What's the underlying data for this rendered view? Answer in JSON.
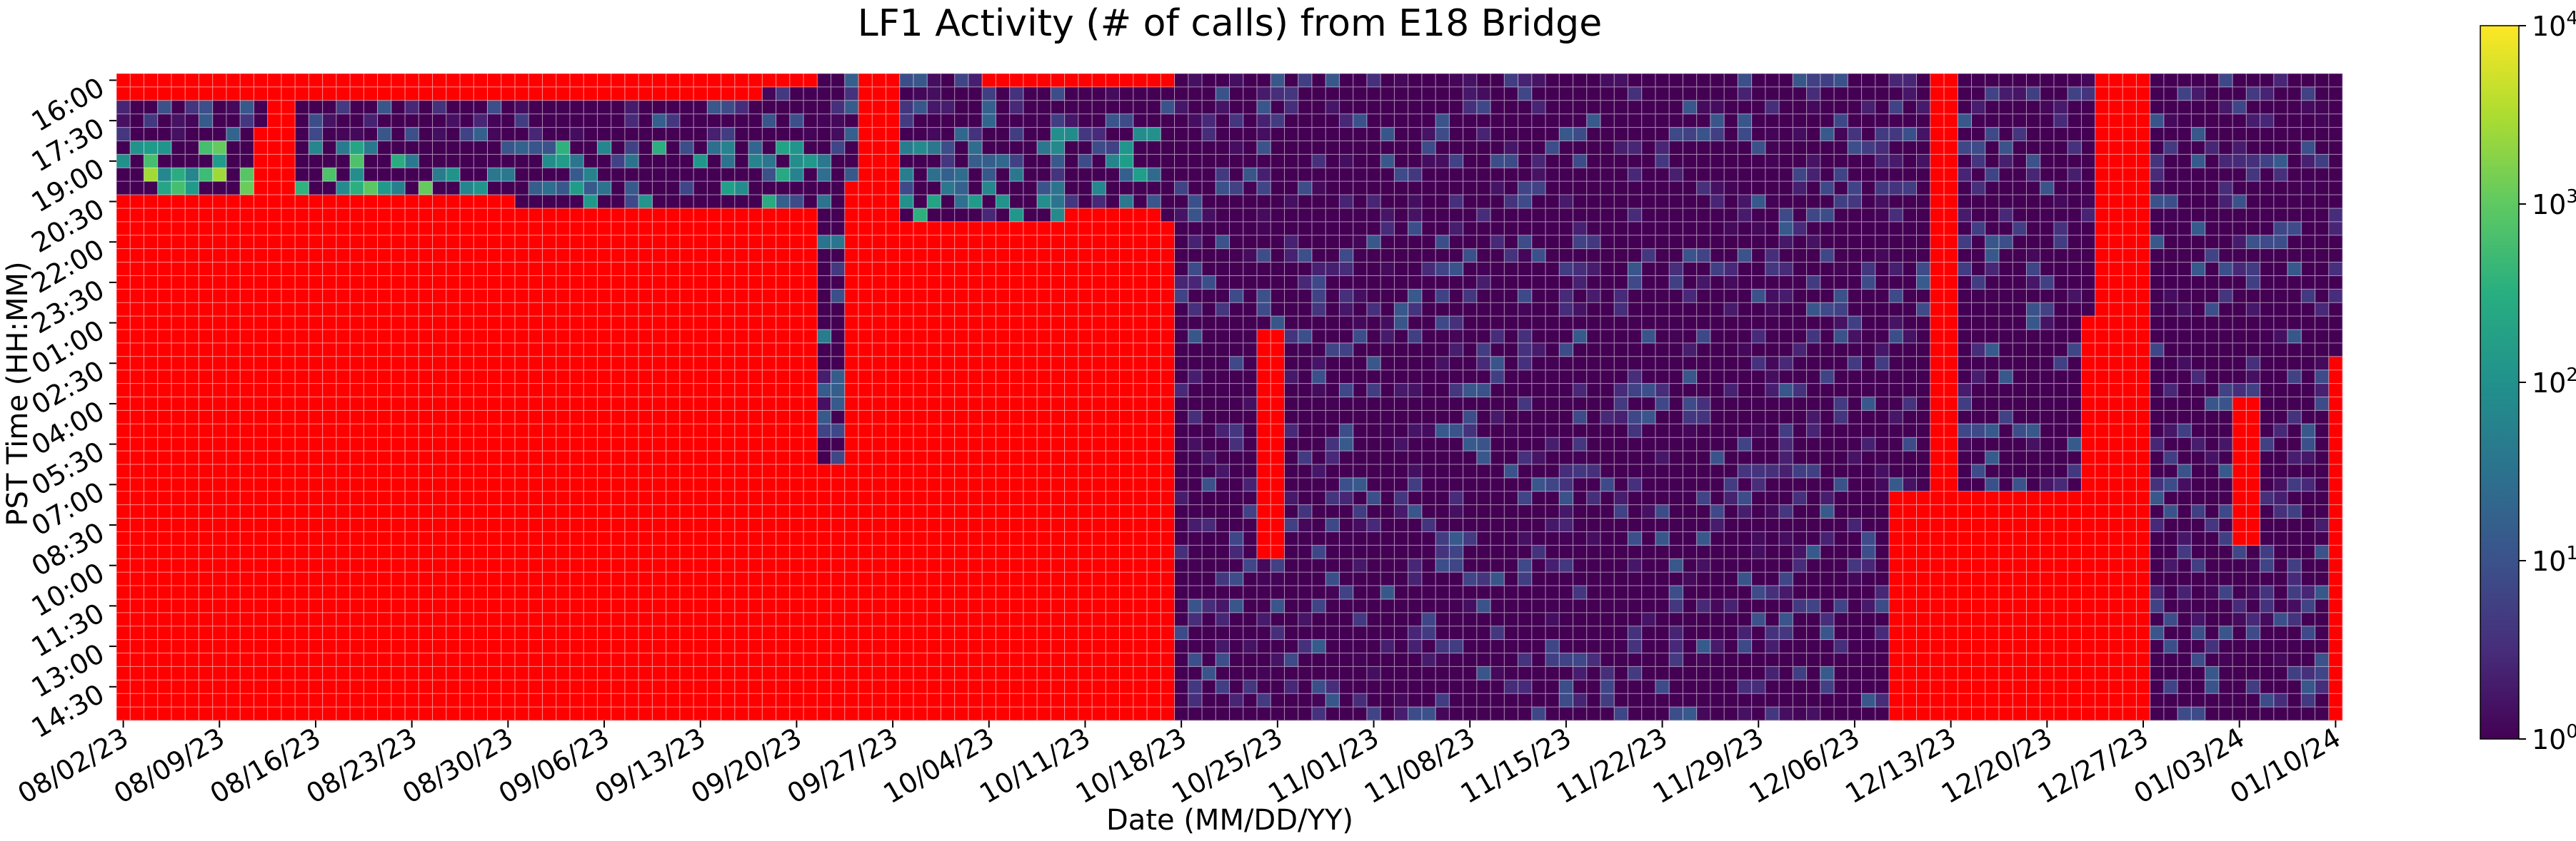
{
  "chart_data": {
    "type": "heatmap",
    "title": "LF1 Activity (# of calls) from E18 Bridge",
    "xlabel": "Date (MM/DD/YY)",
    "ylabel": "PST Time (HH:MM)",
    "x_start": "08/02/23",
    "x_end": "01/10/24",
    "x_tick_labels": [
      "08/02/23",
      "08/09/23",
      "08/16/23",
      "08/23/23",
      "08/30/23",
      "09/06/23",
      "09/13/23",
      "09/20/23",
      "09/27/23",
      "10/04/23",
      "10/11/23",
      "10/18/23",
      "10/25/23",
      "11/01/23",
      "11/08/23",
      "11/15/23",
      "11/22/23",
      "11/29/23",
      "12/06/23",
      "12/13/23",
      "12/20/23",
      "12/27/23",
      "01/03/24",
      "01/10/24"
    ],
    "y_start": "16:00",
    "y_step_minutes": 30,
    "y_tick_labels": [
      "16:00",
      "17:30",
      "19:00",
      "20:30",
      "22:00",
      "23:30",
      "01:00",
      "02:30",
      "04:00",
      "05:30",
      "07:00",
      "08:30",
      "10:00",
      "11:30",
      "13:00",
      "14:30"
    ],
    "colorbar": {
      "scale": "log",
      "colormap": "viridis",
      "range": [
        1,
        10000
      ],
      "tick_bases": [
        "10",
        "10",
        "10",
        "10",
        "10"
      ],
      "tick_exponents": [
        "0",
        "1",
        "2",
        "3",
        "4"
      ]
    },
    "no_data_color": "#ff0000",
    "grid": true
  }
}
